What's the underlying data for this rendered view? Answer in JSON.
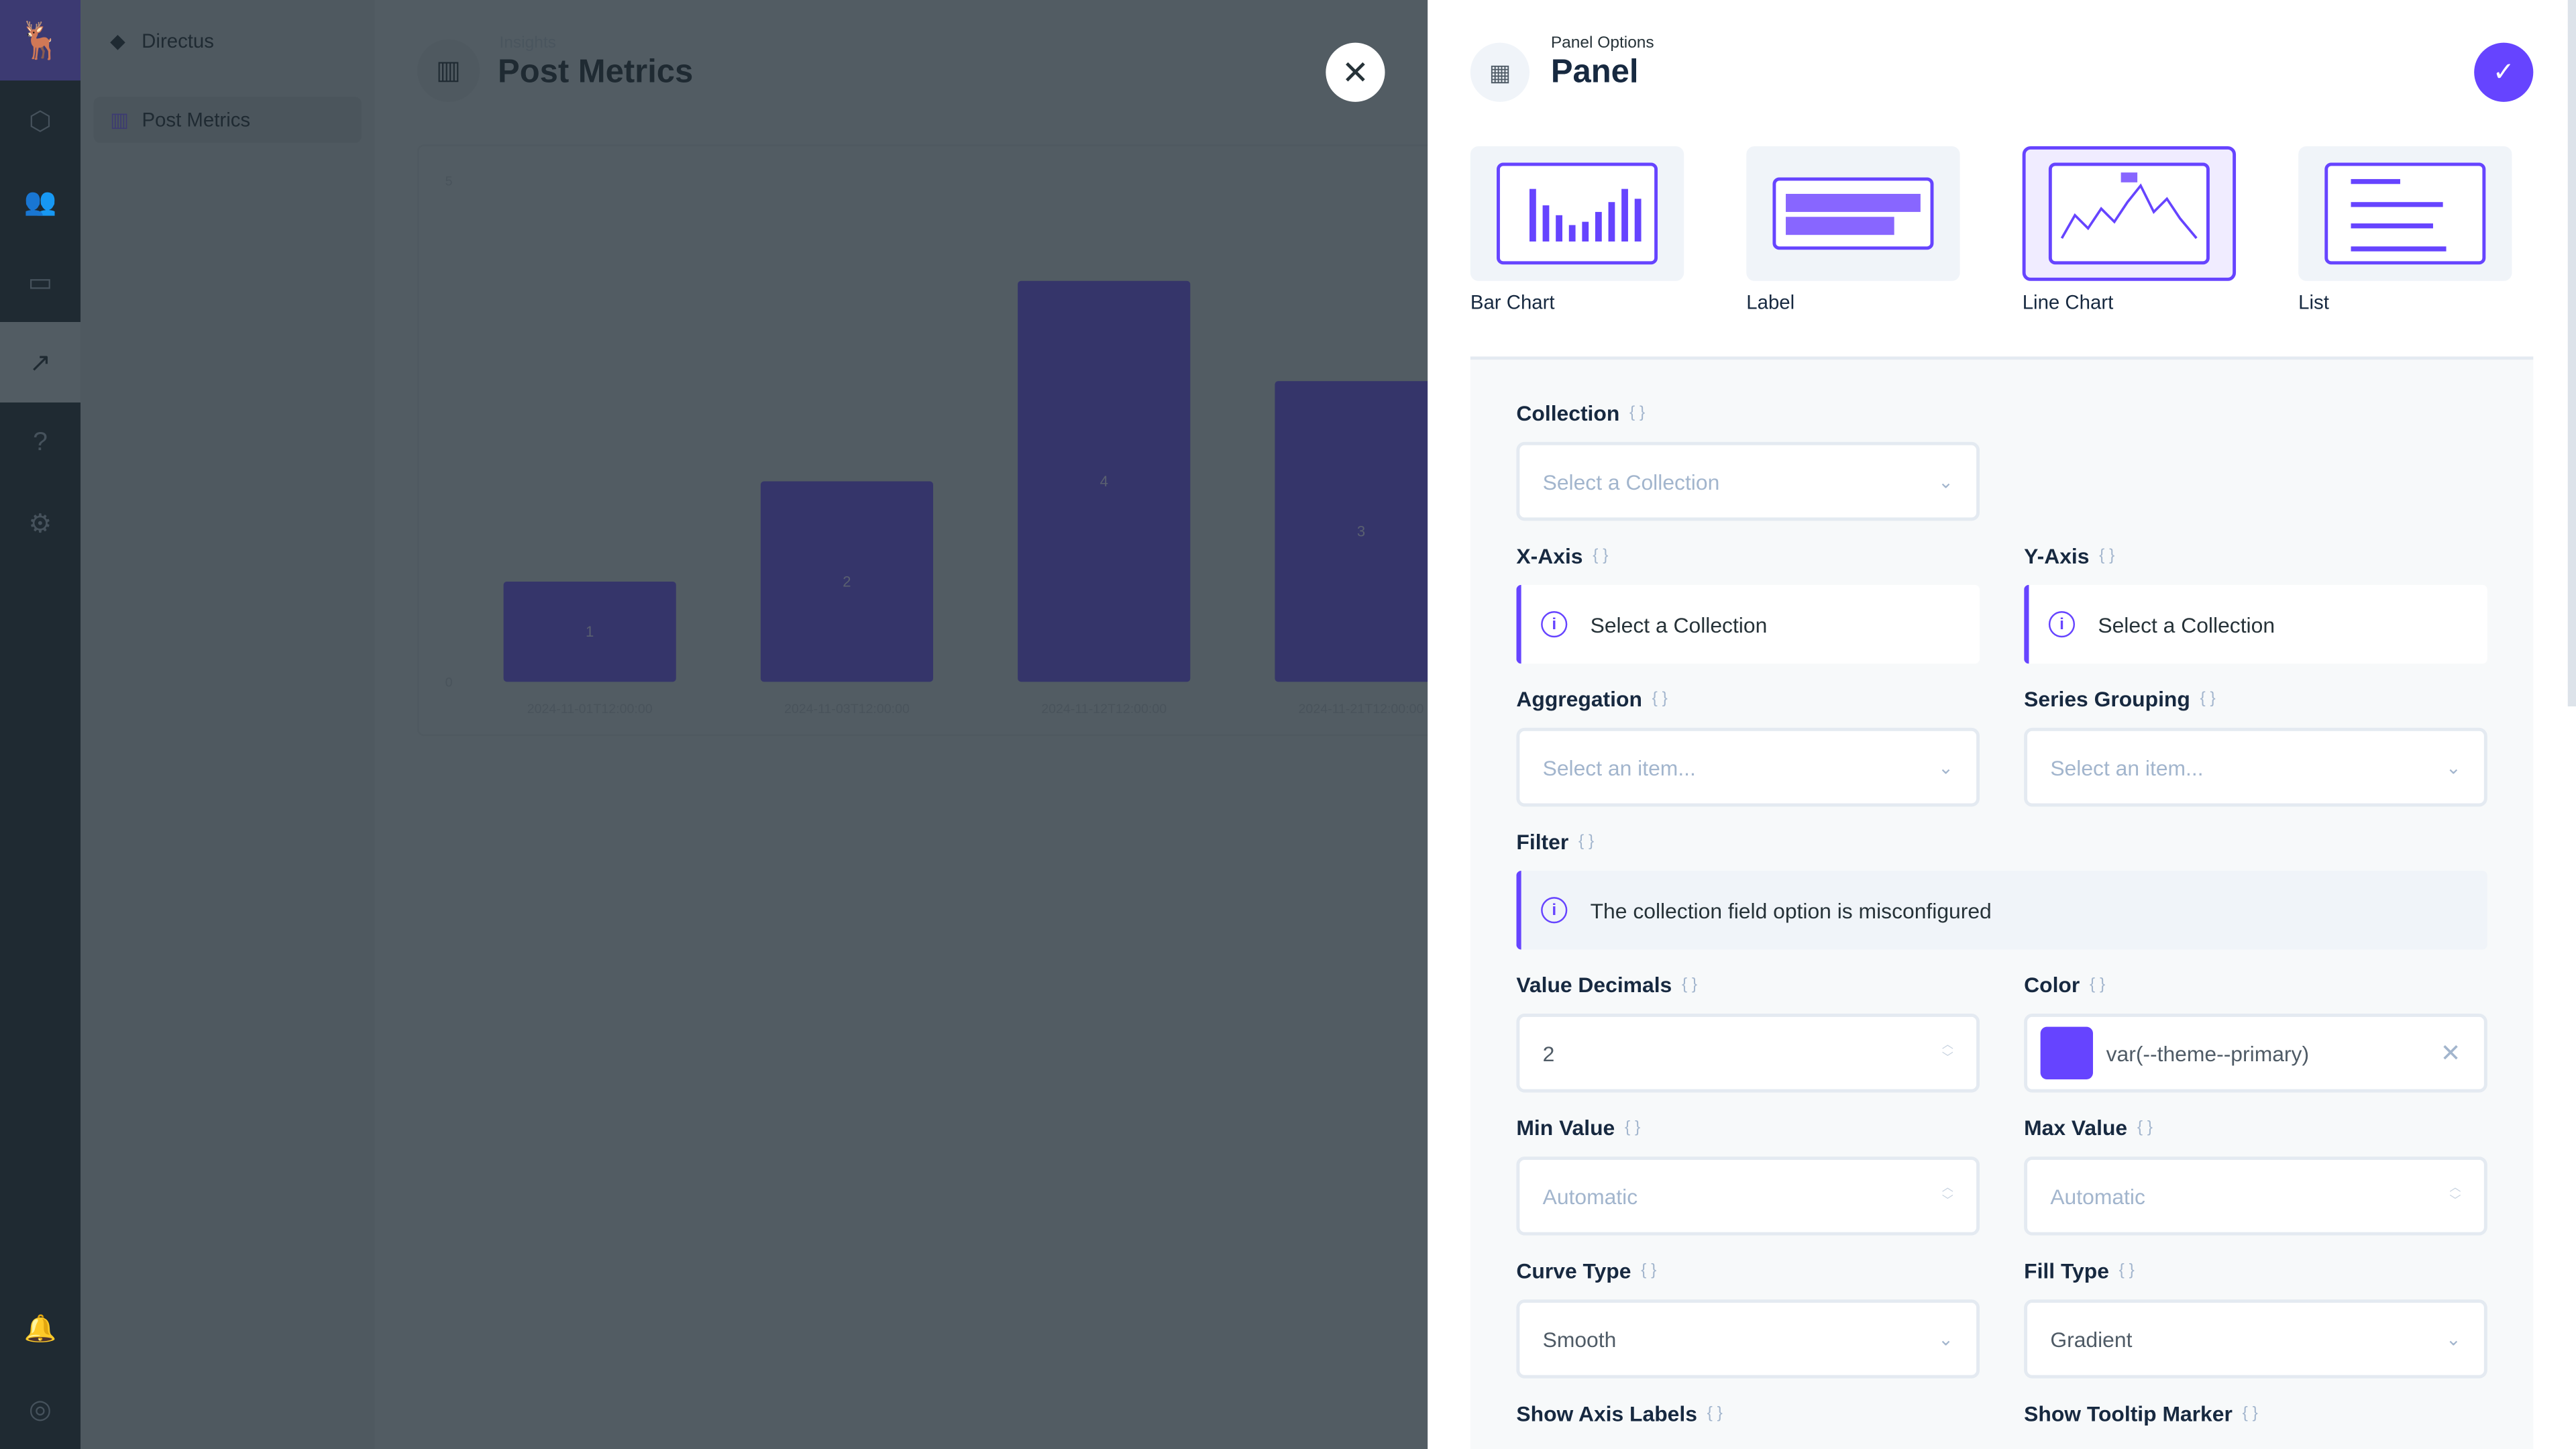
{
  "nav": {
    "items": [
      "logo",
      "content",
      "users",
      "files",
      "insights",
      "help",
      "settings"
    ],
    "bottom": [
      "notifications",
      "profile"
    ],
    "active": "insights"
  },
  "sidebar": {
    "project": "Directus",
    "items": [
      {
        "label": "Post Metrics"
      }
    ]
  },
  "main": {
    "breadcrumb": "Insights",
    "title": "Post Metrics"
  },
  "chart_data": {
    "type": "bar",
    "categories": [
      "2024-11-01T12:00:00",
      "2024-11-03T12:00:00",
      "2024-11-12T12:00:00",
      "2024-11-21T12:00:00"
    ],
    "values": [
      1,
      2,
      4,
      3
    ],
    "ylim": [
      0,
      5
    ],
    "yticks": [
      "0",
      "5"
    ],
    "color": "#35356a"
  },
  "drawer": {
    "subtitle": "Panel Options",
    "title": "Panel",
    "types": [
      {
        "label": "Bar Chart"
      },
      {
        "label": "Label"
      },
      {
        "label": "Line Chart",
        "selected": true
      },
      {
        "label": "List"
      }
    ],
    "fields": {
      "collection": {
        "label": "Collection",
        "placeholder": "Select a Collection"
      },
      "x_axis": {
        "label": "X-Axis",
        "notice": "Select a Collection"
      },
      "y_axis": {
        "label": "Y-Axis",
        "notice": "Select a Collection"
      },
      "aggregation": {
        "label": "Aggregation",
        "placeholder": "Select an item..."
      },
      "series_grouping": {
        "label": "Series Grouping",
        "placeholder": "Select an item..."
      },
      "filter": {
        "label": "Filter",
        "notice": "The collection field option is misconfigured"
      },
      "value_decimals": {
        "label": "Value Decimals",
        "value": "2"
      },
      "color": {
        "label": "Color",
        "value": "var(--theme--primary)",
        "swatch": "#6644ff"
      },
      "min_value": {
        "label": "Min Value",
        "placeholder": "Automatic"
      },
      "max_value": {
        "label": "Max Value",
        "placeholder": "Automatic"
      },
      "curve_type": {
        "label": "Curve Type",
        "value": "Smooth"
      },
      "fill_type": {
        "label": "Fill Type",
        "value": "Gradient"
      },
      "show_axis_labels": {
        "label": "Show Axis Labels"
      },
      "show_tooltip_marker": {
        "label": "Show Tooltip Marker"
      }
    }
  },
  "colors": {
    "primary": "#6644ff"
  }
}
